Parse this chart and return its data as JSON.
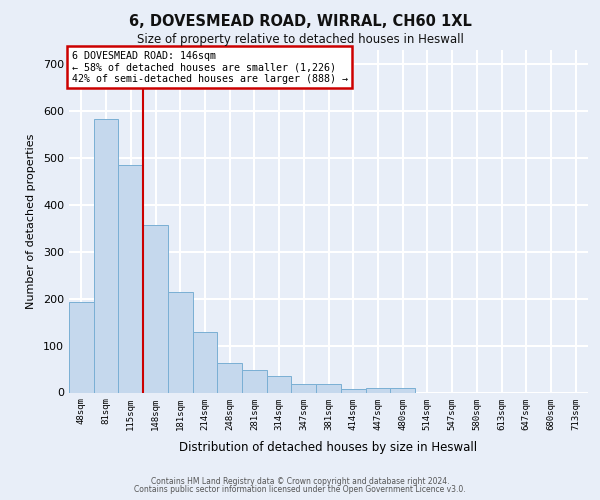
{
  "title1": "6, DOVESMEAD ROAD, WIRRAL, CH60 1XL",
  "title2": "Size of property relative to detached houses in Heswall",
  "xlabel": "Distribution of detached houses by size in Heswall",
  "ylabel": "Number of detached properties",
  "categories": [
    "48sqm",
    "81sqm",
    "115sqm",
    "148sqm",
    "181sqm",
    "214sqm",
    "248sqm",
    "281sqm",
    "314sqm",
    "347sqm",
    "381sqm",
    "414sqm",
    "447sqm",
    "480sqm",
    "514sqm",
    "547sqm",
    "580sqm",
    "613sqm",
    "647sqm",
    "680sqm",
    "713sqm"
  ],
  "values": [
    193,
    583,
    484,
    357,
    215,
    130,
    63,
    47,
    35,
    18,
    18,
    7,
    10,
    10,
    0,
    0,
    0,
    0,
    0,
    0,
    0
  ],
  "bar_color": "#c5d8ed",
  "bar_edge_color": "#7aafd4",
  "annotation_text_line1": "6 DOVESMEAD ROAD: 146sqm",
  "annotation_text_line2": "← 58% of detached houses are smaller (1,226)",
  "annotation_text_line3": "42% of semi-detached houses are larger (888) →",
  "annotation_box_facecolor": "#ffffff",
  "annotation_box_edgecolor": "#cc0000",
  "vline_color": "#cc0000",
  "vline_x": 2.5,
  "background_color": "#e8eef8",
  "grid_color": "#ffffff",
  "footer1": "Contains HM Land Registry data © Crown copyright and database right 2024.",
  "footer2": "Contains public sector information licensed under the Open Government Licence v3.0.",
  "ylim": [
    0,
    730
  ],
  "yticks": [
    0,
    100,
    200,
    300,
    400,
    500,
    600,
    700
  ]
}
